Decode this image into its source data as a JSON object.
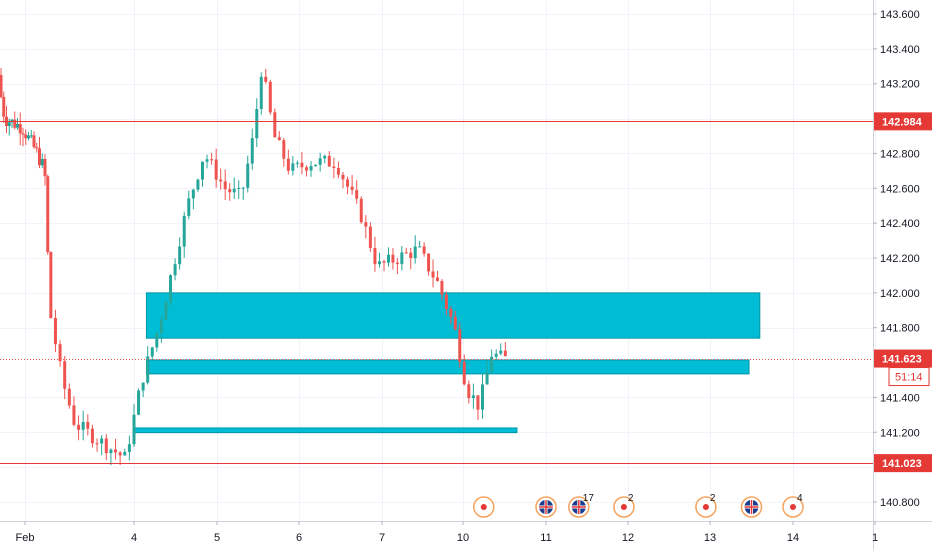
{
  "chart_data": {
    "type": "candlestick",
    "x_labels": [
      {
        "label": "Feb",
        "x": 0.5
      },
      {
        "label": "4",
        "x": 2
      },
      {
        "label": "5",
        "x": 3
      },
      {
        "label": "6",
        "x": 4
      },
      {
        "label": "7",
        "x": 5
      },
      {
        "label": "10",
        "x": 6
      },
      {
        "label": "11",
        "x": 7
      },
      {
        "label": "12",
        "x": 8
      },
      {
        "label": "13",
        "x": 9
      },
      {
        "label": "14",
        "x": 10
      },
      {
        "label": "1",
        "x": 11
      }
    ],
    "y_ticks": [
      "143.600",
      "143.400",
      "143.200",
      "142.800",
      "142.600",
      "142.400",
      "142.200",
      "142.000",
      "141.800",
      "141.400",
      "141.200",
      "140.800"
    ],
    "ylim": [
      140.7,
      143.7
    ],
    "xlim": [
      0,
      11
    ],
    "grid": true,
    "colors": {
      "up": "#26a69a",
      "down": "#ef5350",
      "zone": "#00bcd4",
      "level": "#e53935"
    },
    "levels": [
      {
        "value": 142.984,
        "label": "142.984",
        "style": "solid"
      },
      {
        "value": 141.023,
        "label": "141.023",
        "style": "solid"
      },
      {
        "value": 141.623,
        "label": "141.623",
        "style": "dotted",
        "countdown": "51:14"
      }
    ],
    "zones": [
      {
        "x0": 2.15,
        "x1": 9.6,
        "y0": 141.74,
        "y1": 142.0
      },
      {
        "x0": 2.15,
        "x1": 9.47,
        "y0": 141.535,
        "y1": 141.615
      },
      {
        "x0": 2.0,
        "x1": 6.65,
        "y0": 141.198,
        "y1": 141.225
      }
    ],
    "anchors": [
      [
        0.0,
        143.25
      ],
      [
        0.15,
        143.0
      ],
      [
        0.5,
        142.95
      ],
      [
        0.8,
        142.8
      ],
      [
        0.95,
        142.7
      ],
      [
        1.05,
        141.9
      ],
      [
        1.2,
        141.5
      ],
      [
        1.35,
        141.25
      ],
      [
        1.65,
        141.15
      ],
      [
        1.95,
        141.05
      ],
      [
        2.15,
        141.5
      ],
      [
        2.35,
        141.8
      ],
      [
        2.7,
        142.5
      ],
      [
        2.9,
        142.8
      ],
      [
        3.15,
        142.6
      ],
      [
        3.35,
        142.55
      ],
      [
        3.5,
        142.9
      ],
      [
        3.6,
        143.3
      ],
      [
        3.75,
        142.9
      ],
      [
        3.95,
        142.7
      ],
      [
        4.2,
        142.75
      ],
      [
        4.5,
        142.75
      ],
      [
        4.8,
        142.45
      ],
      [
        5.0,
        142.15
      ],
      [
        5.25,
        142.2
      ],
      [
        5.5,
        142.25
      ],
      [
        5.75,
        142.05
      ],
      [
        5.95,
        141.8
      ],
      [
        6.1,
        141.45
      ],
      [
        6.25,
        141.35
      ],
      [
        6.4,
        141.65
      ],
      [
        6.55,
        141.62
      ]
    ],
    "events": [
      {
        "x": 6.25,
        "kind": "dot",
        "count": ""
      },
      {
        "x": 7.0,
        "kind": "flag",
        "count": ""
      },
      {
        "x": 7.4,
        "kind": "flag",
        "count": "17"
      },
      {
        "x": 7.95,
        "kind": "dot",
        "count": "2"
      },
      {
        "x": 8.95,
        "kind": "dot",
        "count": "2"
      },
      {
        "x": 9.5,
        "kind": "flag",
        "count": ""
      },
      {
        "x": 10.0,
        "kind": "dot",
        "count": "4"
      }
    ]
  }
}
